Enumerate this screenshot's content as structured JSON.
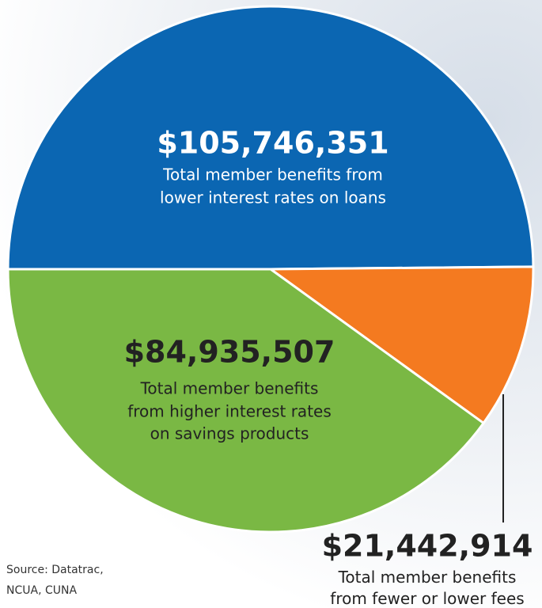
{
  "chart_data": {
    "type": "pie",
    "categories": [
      [
        "Total member benefits from",
        "lower interest rates on loans"
      ],
      [
        "Total member benefits from fewer or lower fees"
      ],
      [
        "Total member benefits",
        "from higher interest rates",
        "on savings products"
      ]
    ],
    "values": [
      105746351,
      21442914,
      84935507
    ],
    "value_labels": [
      "$105,746,351",
      "$21,442,914",
      "$84,935,507"
    ],
    "colors": [
      "#0b66b2",
      "#f47a20",
      "#7ab844"
    ],
    "source": [
      "Source: Datatrac,",
      "NCUA, CUNA"
    ]
  }
}
